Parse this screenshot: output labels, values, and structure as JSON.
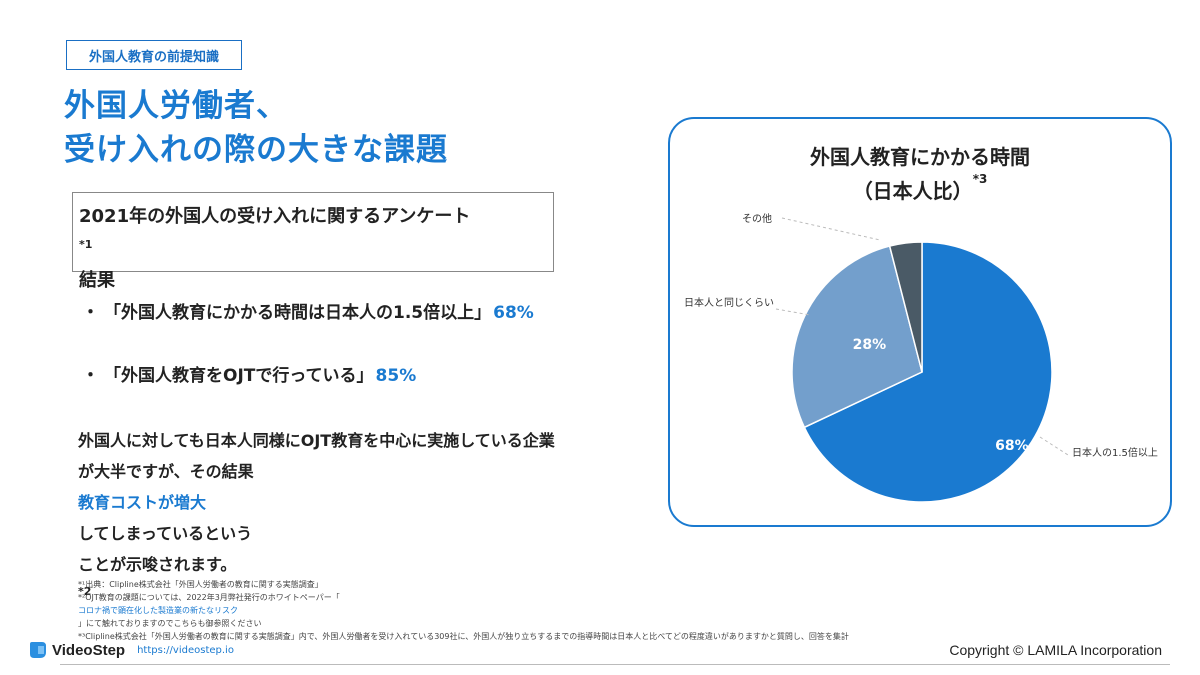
{
  "header": {
    "tag": "外国人教育の前提知識",
    "title_line1": "外国人労働者、",
    "title_line2": "受け入れの際の大きな課題"
  },
  "survey": {
    "line1": "2021年の外国人の受け入れに関するアンケート",
    "line1_sup": "*1",
    "line2": "結果"
  },
  "bullets": [
    {
      "dot": "・",
      "text": "「外国人教育にかかる時間は日本人の1.5倍以上」",
      "value": "68%"
    },
    {
      "dot": "・",
      "text": "「外国人教育をOJTで行っている」",
      "value": "85%"
    }
  ],
  "paragraph": {
    "line1": "外国人に対しても日本人同様にOJT教育を中心に実施している企業",
    "line2_pre": "が大半ですが、その結果",
    "line2_highlight": "教育コストが増大",
    "line2_post": "してしまっているという",
    "line3": "ことが示唆されます。",
    "line3_sup": "*2"
  },
  "chart_card": {
    "title_line1": "外国人教育にかかる時間",
    "title_line2": "（日本人比）",
    "title_sup": "*3"
  },
  "chart_data": {
    "type": "pie",
    "title": "外国人教育にかかる時間（日本人比）",
    "start_angle_deg": 0,
    "direction": "clockwise",
    "slices": [
      {
        "label": "日本人の1.5倍以上",
        "value": 68,
        "value_label": "68%",
        "color": "#1a7ad0"
      },
      {
        "label": "日本人と同じくらい",
        "value": 28,
        "value_label": "28%",
        "color": "#739fcc"
      },
      {
        "label": "その他",
        "value": 4,
        "value_label": "",
        "color": "#4a5a66"
      }
    ]
  },
  "footnotes": {
    "note1": "*¹出典：Clipline株式会社「外国人労働者の教育に関する実態調査」",
    "note2_pre": "*²OJT教育の課題については、2022年3月弊社発行のホワイトペーパー「",
    "note2_link": "コロナ禍で顕在化した製造業の新たなリスク",
    "note2_post": "」にて触れておりますのでこちらも御参照ください",
    "note3": "*³Clipline株式会社「外国人労働者の教育に関する実態調査」内で、外国人労働者を受け入れている309社に、外国人が独り立ちするまでの指導時間は日本人と比べてどの程度違いがありますかと質問し、回答を集計"
  },
  "footer": {
    "brand": "VideoStep",
    "url": "https://videostep.io",
    "copyright": "Copyright ©  LAMILA Incorporation"
  },
  "colors": {
    "accent": "#1a7ad0",
    "slice_light": "#739fcc",
    "slice_dark": "#4a5a66"
  }
}
